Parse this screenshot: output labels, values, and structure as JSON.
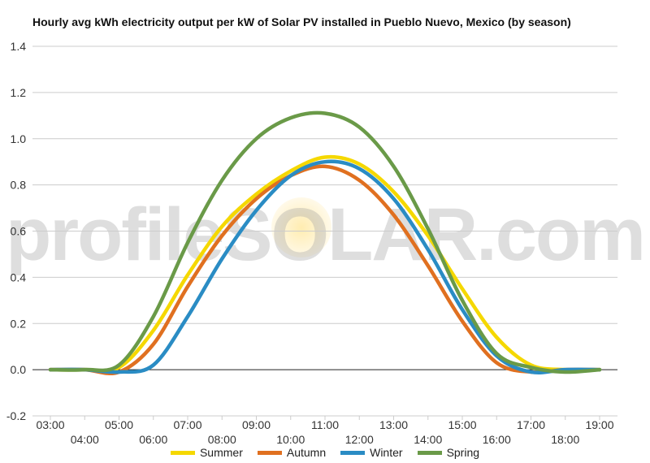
{
  "chart_data": {
    "type": "line",
    "title": "Hourly avg kWh electricity output per kW of Solar PV installed in Pueblo Nuevo, Mexico (by season)",
    "xlabel": "",
    "ylabel": "",
    "x": [
      "03:00",
      "04:00",
      "05:00",
      "06:00",
      "07:00",
      "08:00",
      "09:00",
      "10:00",
      "11:00",
      "12:00",
      "13:00",
      "14:00",
      "15:00",
      "16:00",
      "17:00",
      "18:00",
      "19:00"
    ],
    "ylim": [
      -0.2,
      1.4
    ],
    "yticks": [
      "-0.2",
      "0.0",
      "0.2",
      "0.4",
      "0.6",
      "0.8",
      "1.0",
      "1.2",
      "1.4"
    ],
    "grid": true,
    "legend_position": "bottom",
    "series": [
      {
        "name": "Summer",
        "color": "#f5d800",
        "values": [
          0,
          0,
          0.01,
          0.17,
          0.41,
          0.62,
          0.76,
          0.86,
          0.92,
          0.89,
          0.77,
          0.58,
          0.35,
          0.14,
          0.02,
          0,
          0
        ]
      },
      {
        "name": "Autumn",
        "color": "#e07020",
        "values": [
          0,
          0,
          -0.01,
          0.11,
          0.36,
          0.58,
          0.74,
          0.84,
          0.88,
          0.82,
          0.67,
          0.45,
          0.21,
          0.03,
          -0.01,
          0,
          0
        ]
      },
      {
        "name": "Winter",
        "color": "#2a8cc4",
        "values": [
          0,
          0,
          -0.01,
          0.02,
          0.23,
          0.48,
          0.69,
          0.84,
          0.9,
          0.87,
          0.74,
          0.52,
          0.26,
          0.06,
          -0.01,
          0,
          0
        ]
      },
      {
        "name": "Spring",
        "color": "#6a9a48",
        "values": [
          0,
          0,
          0.02,
          0.23,
          0.55,
          0.82,
          1.0,
          1.09,
          1.11,
          1.05,
          0.88,
          0.61,
          0.3,
          0.07,
          0.01,
          -0.01,
          0
        ]
      }
    ]
  },
  "watermark": "profileSOLAR.com"
}
